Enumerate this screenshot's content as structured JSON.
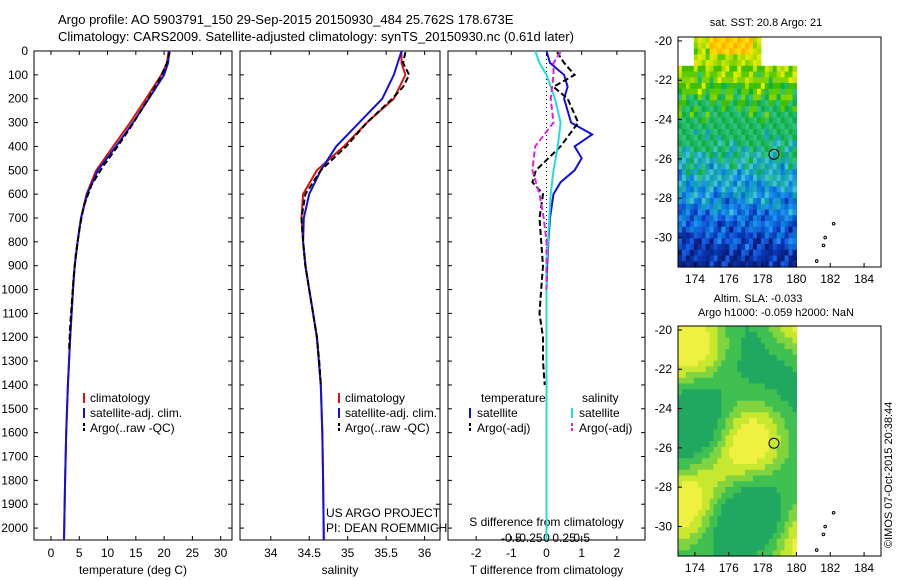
{
  "header": {
    "line1": "Argo profile: AO 5903791_150 29-Sep-2015 20150930_484 25.762S 178.673E",
    "line2": "Climatology: CARS2009. Satellite-adjusted climatology: synTS_20150930.nc (0.61d later)"
  },
  "colors": {
    "climatology": "#dd1111",
    "satellite": "#1111dd",
    "argo": "#000000",
    "sal_satellite": "#22dddd",
    "sal_argo": "#dd22dd"
  },
  "chart_data": [
    {
      "type": "line",
      "xlabel": "temperature (deg C)",
      "ylabel": "",
      "xlim": [
        -3,
        32
      ],
      "ylim": [
        2050,
        0
      ],
      "xticks": [
        "0",
        "5",
        "10",
        "15",
        "20",
        "25",
        "30"
      ],
      "yticks": [
        "0",
        "100",
        "200",
        "300",
        "400",
        "500",
        "600",
        "700",
        "800",
        "900",
        "1000",
        "1100",
        "1200",
        "1300",
        "1400",
        "1500",
        "1600",
        "1700",
        "1800",
        "1900",
        "2000"
      ],
      "legend": [
        "climatology",
        "satellite-adj. clim.",
        "Argo(..raw -QC)"
      ],
      "legend_position": "lower-center",
      "series": [
        {
          "name": "climatology",
          "style": "solid",
          "color": "#dd1111",
          "depth": [
            0,
            50,
            100,
            200,
            300,
            400,
            500,
            600,
            700,
            800,
            900,
            1000,
            1200,
            1400,
            1600,
            1800,
            2050
          ],
          "values": [
            20.8,
            20.5,
            19.5,
            16.8,
            14.0,
            11.0,
            8.0,
            6.3,
            5.3,
            4.7,
            4.2,
            3.9,
            3.4,
            3.0,
            2.7,
            2.5,
            2.3
          ]
        },
        {
          "name": "satellite-adj. clim.",
          "style": "solid",
          "color": "#1111dd",
          "depth": [
            0,
            50,
            100,
            200,
            300,
            400,
            500,
            600,
            700,
            800,
            900,
            1000,
            1200,
            1400,
            1600,
            1800,
            2050
          ],
          "values": [
            20.9,
            20.7,
            20.0,
            17.3,
            14.5,
            11.5,
            8.3,
            6.4,
            5.3,
            4.7,
            4.2,
            3.9,
            3.4,
            3.0,
            2.7,
            2.5,
            2.3
          ]
        },
        {
          "name": "Argo(..raw -QC)",
          "style": "dashed",
          "color": "#000000",
          "depth": [
            5,
            50,
            100,
            200,
            300,
            400,
            480,
            560,
            650,
            750,
            850,
            950,
            1050,
            1150,
            1250
          ],
          "values": [
            21.0,
            20.5,
            19.6,
            17.2,
            14.6,
            11.8,
            9.3,
            7.2,
            5.8,
            5.0,
            4.4,
            4.0,
            3.7,
            3.4,
            3.2
          ]
        }
      ]
    },
    {
      "type": "line",
      "xlabel": "salinity",
      "ylabel": "",
      "xlim": [
        33.6,
        36.2
      ],
      "ylim": [
        2050,
        0
      ],
      "xticks": [
        "34",
        "34.5",
        "35",
        "35.5",
        "36"
      ],
      "legend": [
        "climatology",
        "satellite-adj. clim.",
        "Argo(..raw -QC)"
      ],
      "legend_position": "lower-right",
      "annotation": [
        "US ARGO PROJECT",
        "PI: DEAN ROEMMICH"
      ],
      "series": [
        {
          "name": "climatology",
          "style": "solid",
          "color": "#dd1111",
          "depth": [
            0,
            50,
            100,
            200,
            300,
            400,
            500,
            600,
            700,
            800,
            900,
            1000,
            1100,
            1200,
            1400,
            1600,
            1800,
            2050
          ],
          "values": [
            35.7,
            35.7,
            35.75,
            35.6,
            35.25,
            34.95,
            34.6,
            34.42,
            34.4,
            34.42,
            34.45,
            34.5,
            34.55,
            34.6,
            34.65,
            34.67,
            34.68,
            34.69
          ]
        },
        {
          "name": "satellite-adj. clim.",
          "style": "solid",
          "color": "#1111dd",
          "depth": [
            0,
            50,
            100,
            200,
            300,
            400,
            500,
            600,
            700,
            800,
            900,
            1000,
            1100,
            1200,
            1400,
            1600,
            1800,
            2050
          ],
          "values": [
            35.7,
            35.65,
            35.6,
            35.45,
            35.15,
            34.85,
            34.65,
            34.5,
            34.43,
            34.42,
            34.45,
            34.5,
            34.55,
            34.6,
            34.65,
            34.67,
            34.68,
            34.69
          ]
        },
        {
          "name": "Argo(..raw -QC)",
          "style": "dashed",
          "color": "#000000",
          "depth": [
            5,
            50,
            100,
            150,
            200,
            300,
            400,
            500,
            600,
            700,
            800,
            900,
            1000,
            1100,
            1200,
            1300,
            1400
          ],
          "values": [
            35.75,
            35.72,
            35.8,
            35.72,
            35.58,
            35.25,
            34.98,
            34.65,
            34.45,
            34.4,
            34.42,
            34.45,
            34.5,
            34.55,
            34.6,
            34.63,
            34.65
          ]
        }
      ]
    },
    {
      "type": "line",
      "title_top": "S difference from climatology",
      "xlabel": "T difference from climatology",
      "xlim": [
        -2.8,
        2.8
      ],
      "ylim": [
        2050,
        0
      ],
      "xticks": [
        "-2",
        "-1",
        "0",
        "1",
        "2"
      ],
      "xticks_top": [
        "-0.5",
        "-0.25",
        "0",
        "0.25",
        "0.5"
      ],
      "legend": [
        {
          "group": "temperature",
          "items": [
            "satellite",
            "Argo(-adj)"
          ]
        },
        {
          "group": "salinity",
          "items": [
            "satellite",
            "Argo(-adj)"
          ]
        }
      ],
      "legend_position": "lower-center",
      "series": [
        {
          "name": "temperature satellite",
          "group": "temperature",
          "style": "solid",
          "color": "#1111dd",
          "depth": [
            0,
            50,
            100,
            150,
            200,
            300,
            350,
            400,
            450,
            500,
            550,
            600,
            700,
            800,
            900,
            1000,
            1200,
            1500,
            2050
          ],
          "values": [
            0.0,
            0.1,
            0.5,
            0.6,
            0.5,
            0.7,
            1.3,
            0.8,
            1.0,
            0.8,
            0.4,
            0.2,
            0.1,
            0.05,
            0.02,
            0.0,
            0.0,
            0.0,
            0.0
          ]
        },
        {
          "name": "temperature Argo(-adj)",
          "group": "temperature",
          "style": "dashed",
          "color": "#000000",
          "depth": [
            5,
            50,
            100,
            150,
            200,
            300,
            400,
            500,
            550,
            600,
            700,
            800,
            900,
            1000,
            1100,
            1200,
            1300,
            1400
          ],
          "values": [
            0.3,
            0.5,
            0.8,
            0.2,
            0.6,
            0.9,
            0.4,
            -0.3,
            -0.4,
            -0.1,
            -0.2,
            -0.15,
            -0.1,
            -0.15,
            -0.2,
            -0.1,
            -0.1,
            -0.05
          ]
        },
        {
          "name": "salinity satellite",
          "group": "salinity",
          "style": "solid",
          "color": "#22dddd",
          "depth": [
            0,
            50,
            100,
            200,
            300,
            400,
            500,
            600,
            700,
            800,
            900,
            1000,
            1200,
            1500,
            2050
          ],
          "values": [
            -0.08,
            -0.05,
            0.0,
            0.06,
            0.1,
            0.08,
            0.05,
            0.03,
            0.02,
            0.01,
            0.0,
            0.0,
            0.0,
            0.0,
            0.0
          ]
        },
        {
          "name": "salinity Argo(-adj)",
          "group": "salinity",
          "style": "dashed",
          "color": "#dd22dd",
          "depth": [
            5,
            50,
            100,
            200,
            300,
            400,
            500,
            600,
            700,
            800,
            900,
            1000
          ],
          "values": [
            0.1,
            0.05,
            0.05,
            0.03,
            0.05,
            -0.08,
            -0.1,
            -0.05,
            -0.02,
            0.0,
            0.0,
            0.0
          ]
        }
      ]
    },
    {
      "type": "heatmap",
      "title": "sat. SST: 20.8 Argo: 21",
      "xlim": [
        173,
        185
      ],
      "ylim": [
        -31.5,
        -19.8
      ],
      "xticks": [
        "174",
        "176",
        "178",
        "180",
        "182",
        "184"
      ],
      "yticks": [
        "-20",
        "-22",
        "-24",
        "-26",
        "-28",
        "-30"
      ],
      "data_lon_max": 180,
      "marker": {
        "lon": 178.673,
        "lat": -25.762
      }
    },
    {
      "type": "heatmap",
      "title": "Altim. SLA: -0.033",
      "subtitle": "Argo h1000: -0.059 h2000: NaN",
      "xlim": [
        173,
        185
      ],
      "ylim": [
        -31.5,
        -19.8
      ],
      "xticks": [
        "174",
        "176",
        "178",
        "180",
        "182",
        "184"
      ],
      "yticks": [
        "-20",
        "-22",
        "-24",
        "-26",
        "-28",
        "-30"
      ],
      "data_lon_max": 180,
      "marker": {
        "lon": 178.673,
        "lat": -25.762
      }
    }
  ],
  "footer": {
    "stamp": "©IMOS 07-Oct-2015 20:38:44"
  }
}
